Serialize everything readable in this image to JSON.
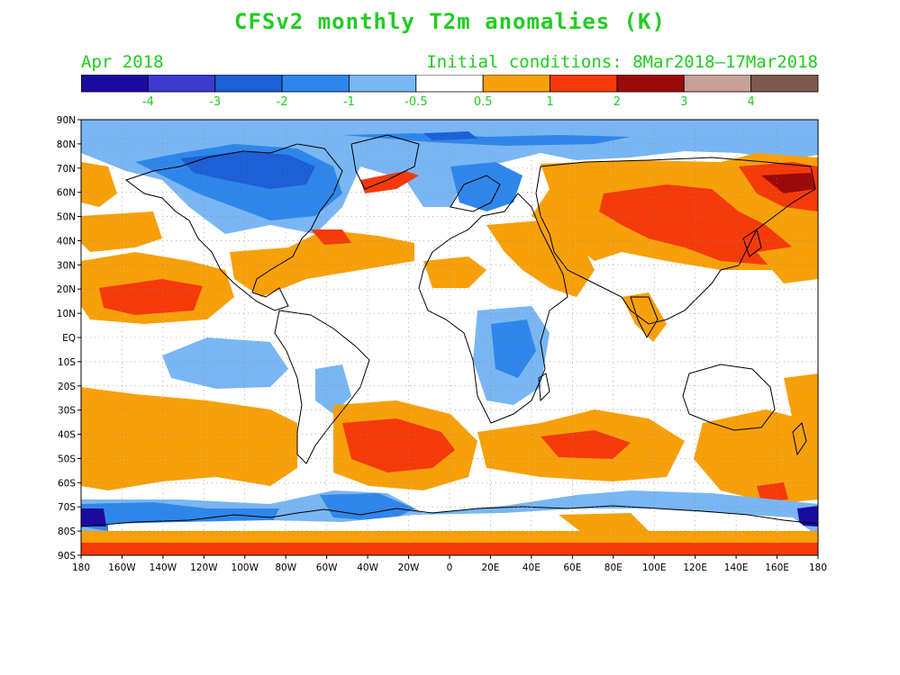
{
  "title": "CFSv2 monthly T2m anomalies (K)",
  "subtitle_left": "Apr 2018",
  "subtitle_right": "Initial conditions: 8Mar2018–17Mar2018",
  "colorbar": {
    "colors": [
      "#1a0aa0",
      "#3b3bd0",
      "#1c5fd6",
      "#2f86ea",
      "#79b6f3",
      "#ffffff",
      "#f7a00a",
      "#f53a0a",
      "#9b0a0a",
      "#c9a095",
      "#7d5a4d"
    ],
    "labels": [
      "-4",
      "-3",
      "-2",
      "-1",
      "-0.5",
      "0.5",
      "1",
      "2",
      "3",
      "4"
    ]
  },
  "lat_labels": [
    "90N",
    "80N",
    "70N",
    "60N",
    "50N",
    "40N",
    "30N",
    "20N",
    "10N",
    "EQ",
    "10S",
    "20S",
    "30S",
    "40S",
    "50S",
    "60S",
    "70S",
    "80S",
    "90S"
  ],
  "lon_labels": [
    "180",
    "160W",
    "140W",
    "120W",
    "100W",
    "80W",
    "60W",
    "40W",
    "20W",
    "0",
    "20E",
    "40E",
    "60E",
    "80E",
    "100E",
    "120E",
    "140E",
    "160E",
    "180"
  ]
}
